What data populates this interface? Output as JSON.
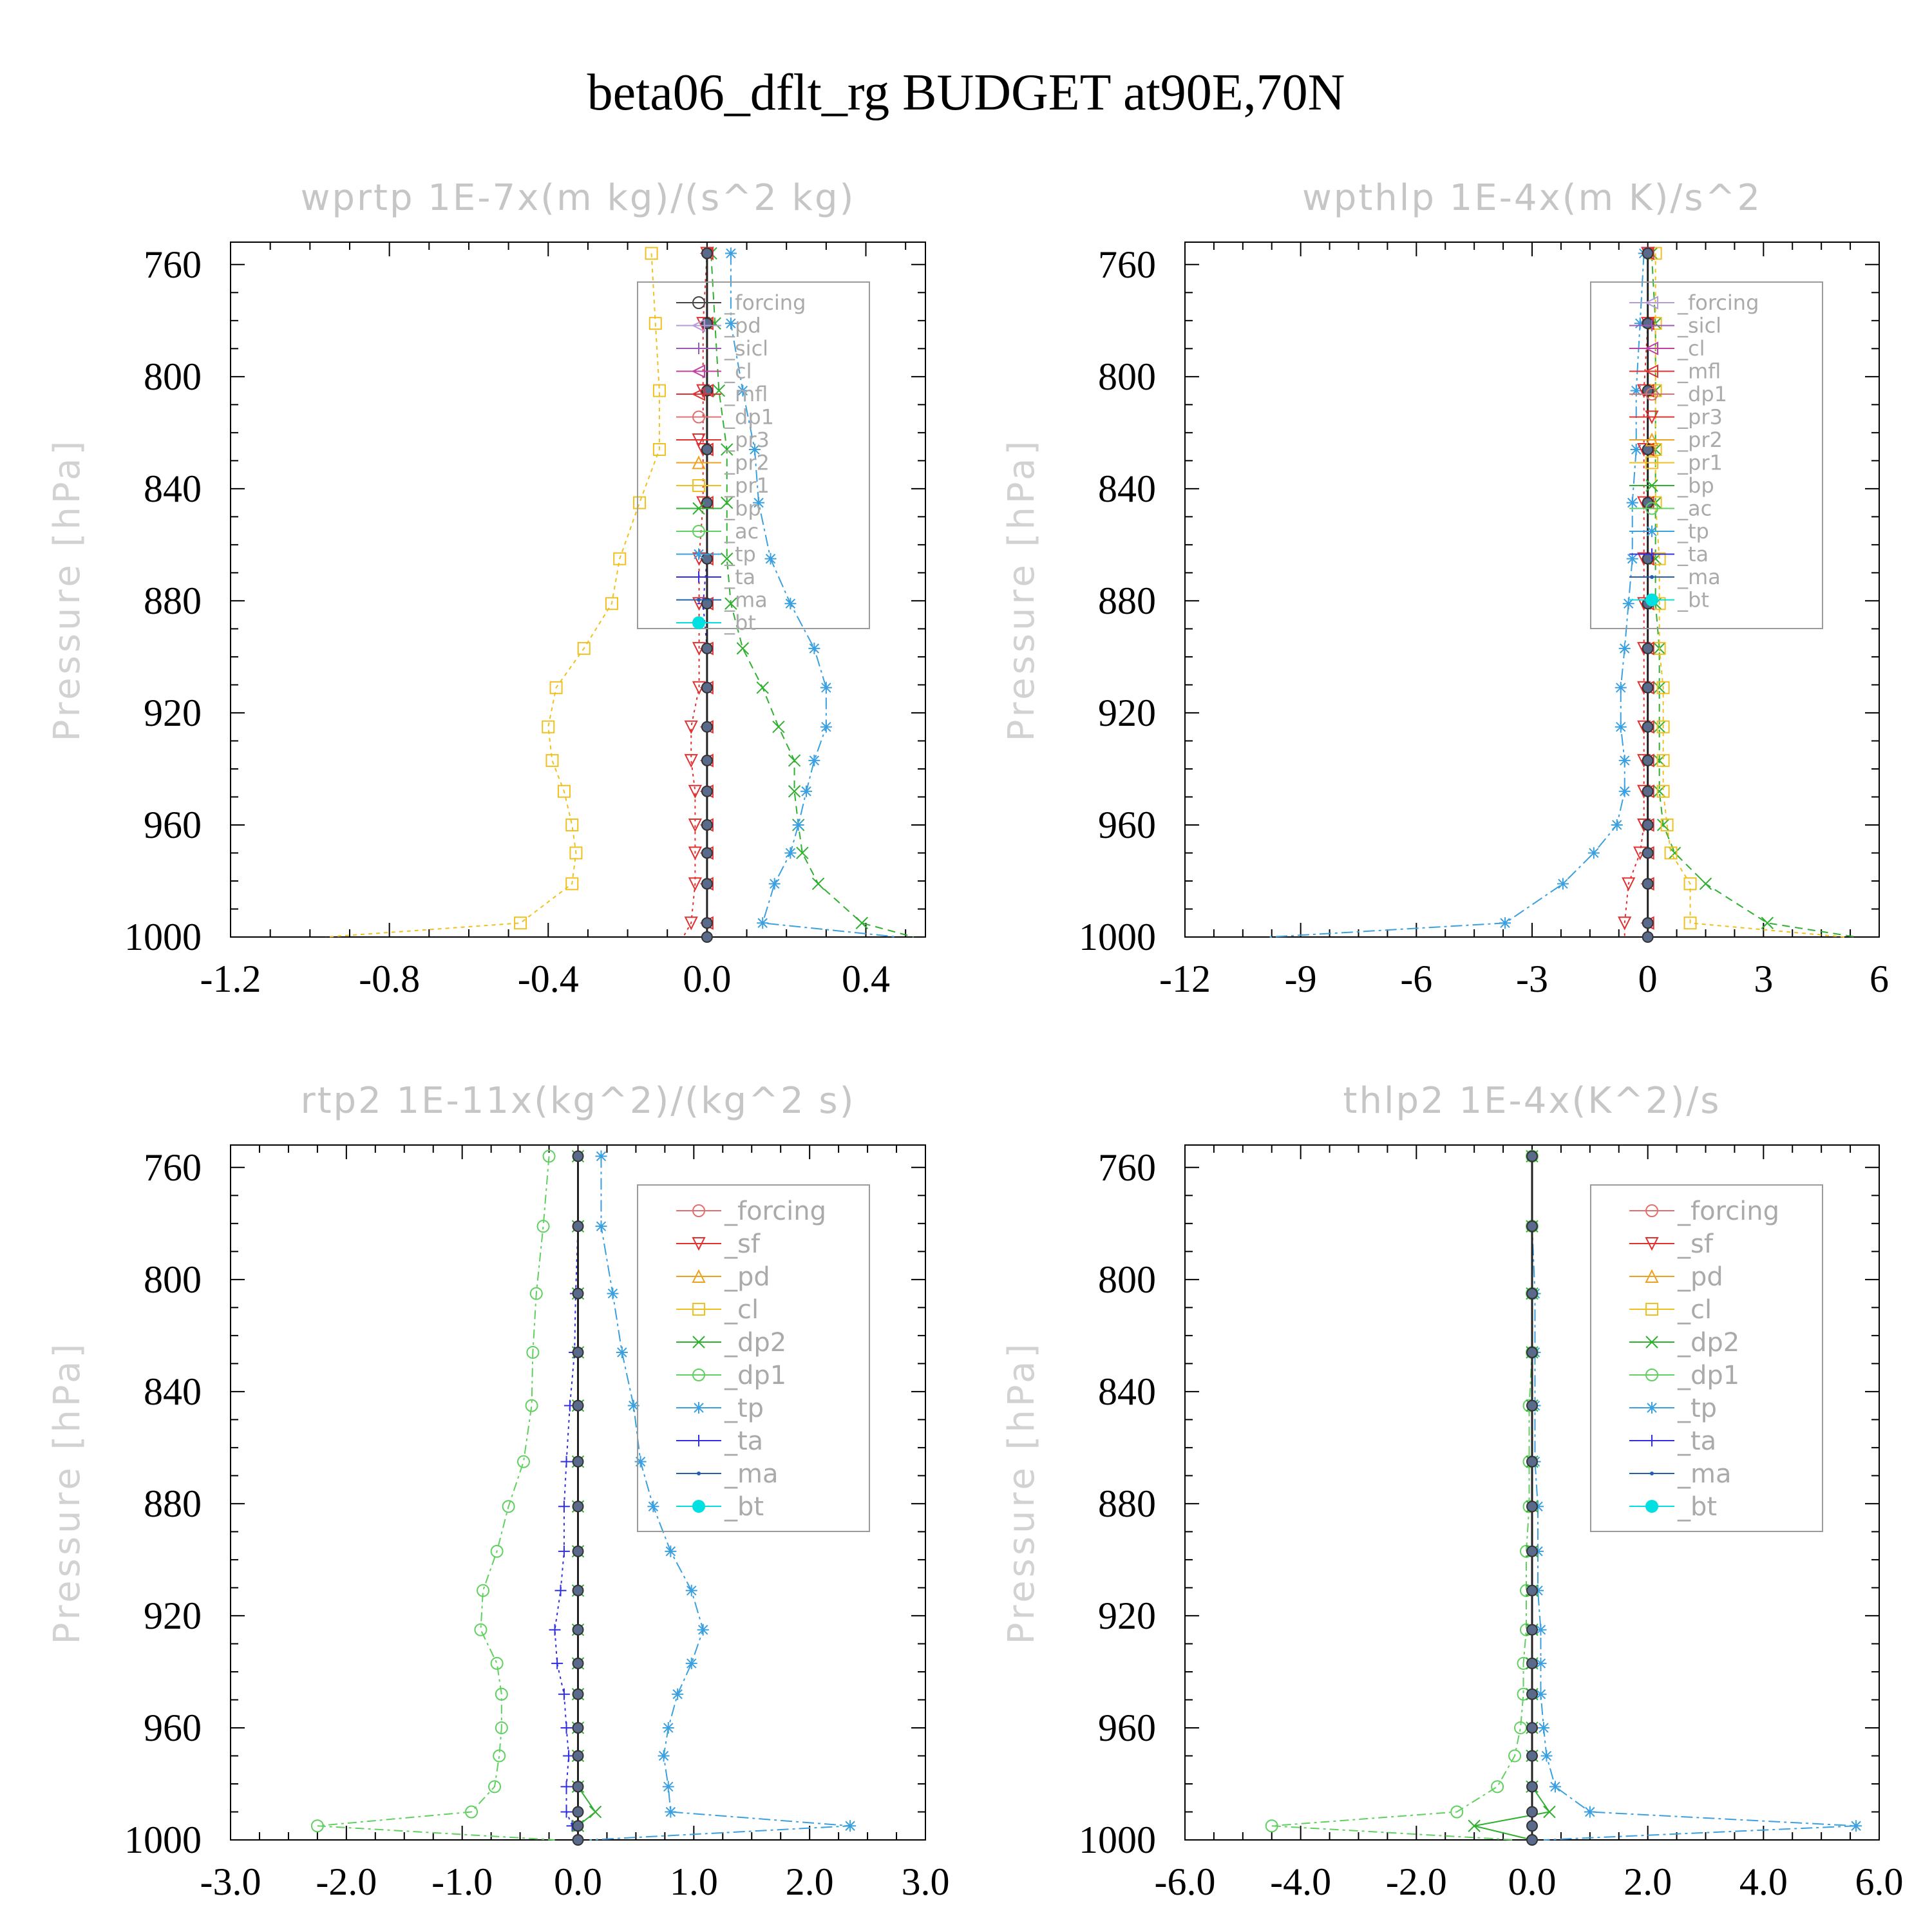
{
  "title": "beta06_dflt_rg  BUDGET at90E,70N",
  "ylabel": "Pressure [hPa]",
  "colors": {
    "forcing": "#444444",
    "pd": "#b59bd8",
    "sicl": "#9b59b6",
    "cl": "#c040a0",
    "mfl": "#e03030",
    "dp1": "#e07070",
    "pr3": "#e03030",
    "pr2": "#f0a020",
    "pr1": "#f0c020",
    "bp": "#30b030",
    "ac": "#60d060",
    "tp": "#3aa0e0",
    "ta": "#3030e0",
    "ma": "#2060b0",
    "bt": "#00e0e0"
  },
  "chart_data": [
    {
      "type": "line",
      "title": "wprtp  1E-7x(m kg)/(s^2 kg)",
      "xlim": [
        -1.2,
        0.55
      ],
      "xticks": [
        -1.2,
        -0.8,
        -0.4,
        0.0,
        0.4
      ],
      "xtick_labels": [
        "-1.2",
        "-0.8",
        "-0.4",
        "0.0",
        "0.4"
      ],
      "ylim": [
        1000,
        752
      ],
      "yticks": [
        760,
        800,
        840,
        880,
        920,
        960,
        1000
      ],
      "legend": [
        "_forcing",
        "_pd",
        "_sicl",
        "_cl",
        "_mfl",
        "_dp1",
        "_pr3",
        "_pr2",
        "_pr1",
        "_bp",
        "_ac",
        "_tp",
        "_ta",
        "_ma",
        "_bt"
      ],
      "legend_keys": [
        "forcing",
        "pd",
        "sicl",
        "cl",
        "mfl",
        "dp1",
        "pr3",
        "pr2",
        "pr1",
        "bp",
        "ac",
        "tp",
        "ta",
        "ma",
        "bt"
      ],
      "legend_big": false,
      "pressure": [
        756,
        781,
        805,
        826,
        845,
        865,
        881,
        897,
        911,
        925,
        937,
        948,
        960,
        970,
        981,
        995,
        1000
      ],
      "series": [
        {
          "name": "_pr1",
          "key": "pr1",
          "marker": "square",
          "dash": "6,6",
          "values": [
            -0.14,
            -0.13,
            -0.12,
            -0.12,
            -0.17,
            -0.22,
            -0.24,
            -0.31,
            -0.38,
            -0.4,
            -0.39,
            -0.36,
            -0.34,
            -0.33,
            -0.34,
            -0.47,
            -0.96
          ]
        },
        {
          "name": "_pr3",
          "key": "pr3",
          "marker": "tri-down",
          "dash": "4,6",
          "values": [
            0.0,
            -0.01,
            -0.01,
            -0.01,
            -0.01,
            -0.02,
            -0.02,
            -0.02,
            -0.02,
            -0.04,
            -0.04,
            -0.03,
            -0.03,
            -0.03,
            -0.03,
            -0.04,
            -0.06
          ]
        },
        {
          "name": "_bp",
          "key": "bp",
          "marker": "x",
          "dash": "12,8",
          "values": [
            0.01,
            0.02,
            0.03,
            0.05,
            0.05,
            0.05,
            0.06,
            0.09,
            0.14,
            0.18,
            0.22,
            0.22,
            0.23,
            0.24,
            0.28,
            0.39,
            0.52
          ]
        },
        {
          "name": "_tp",
          "key": "tp",
          "marker": "asterisk",
          "dash": "18,6,4,6",
          "values": [
            0.06,
            0.06,
            0.09,
            0.12,
            0.13,
            0.16,
            0.21,
            0.27,
            0.3,
            0.3,
            0.27,
            0.25,
            0.23,
            0.21,
            0.17,
            0.14,
            0.48
          ]
        },
        {
          "name": "_ta",
          "key": "ta",
          "marker": "plus",
          "dash": "4,6",
          "values": [
            0.0,
            0.0,
            0.0,
            0.0,
            0.0,
            0.0,
            -0.01,
            0.0,
            0.0,
            0.0,
            0.0,
            0.0,
            0.0,
            0.0,
            0.0,
            0.0,
            0.0
          ]
        },
        {
          "name": "_ma",
          "key": "ma",
          "marker": "dot",
          "dash": "14,6,4,6",
          "values": [
            0.0,
            0.0,
            0.0,
            0.0,
            0.0,
            0.0,
            0.0,
            0.0,
            0.0,
            0.0,
            0.0,
            0.0,
            0.0,
            0.0,
            0.0,
            0.0,
            0.0
          ]
        },
        {
          "name": "_mfl",
          "key": "mfl",
          "marker": "tri-left",
          "dash": "",
          "values": [
            0.0,
            0.0,
            0.0,
            0.0,
            0.0,
            0.0,
            0.0,
            0.0,
            0.0,
            0.0,
            0.0,
            0.0,
            0.0,
            0.0,
            0.0,
            0.0,
            0.0
          ]
        },
        {
          "name": "_forcing",
          "key": "forcing",
          "marker": "circle-bold",
          "dash": "",
          "values": [
            0.0,
            0.0,
            0.0,
            0.0,
            0.0,
            0.0,
            0.0,
            0.0,
            0.0,
            0.0,
            0.0,
            0.0,
            0.0,
            0.0,
            0.0,
            0.0,
            0.0
          ]
        }
      ]
    },
    {
      "type": "line",
      "title": "wpthlp  1E-4x(m K)/s^2",
      "xlim": [
        -12,
        6
      ],
      "xticks": [
        -12,
        -9,
        -6,
        -3,
        0,
        3,
        6
      ],
      "xtick_labels": [
        "-12",
        "-9",
        "-6",
        "-3",
        "0",
        "3",
        "6"
      ],
      "ylim": [
        1000,
        752
      ],
      "yticks": [
        760,
        800,
        840,
        880,
        920,
        960,
        1000
      ],
      "legend": [
        "_forcing",
        "_sicl",
        "_cl",
        "_mfl",
        "_dp1",
        "_pr3",
        "_pr2",
        "_pr1",
        "_bp",
        "_ac",
        "_tp",
        "_ta",
        "_ma",
        "_bt"
      ],
      "legend_keys": [
        "pd",
        "sicl",
        "cl",
        "mfl",
        "dp1",
        "pr3",
        "pr2",
        "pr1",
        "bp",
        "ac",
        "tp",
        "ta",
        "ma",
        "bt"
      ],
      "legend_big": false,
      "pressure": [
        756,
        781,
        805,
        826,
        845,
        865,
        881,
        897,
        911,
        925,
        937,
        948,
        960,
        970,
        981,
        995,
        1000
      ],
      "series": [
        {
          "name": "_tp",
          "key": "tp",
          "marker": "asterisk",
          "dash": "18,6,4,6",
          "values": [
            -0.1,
            -0.2,
            -0.3,
            -0.3,
            -0.4,
            -0.4,
            -0.5,
            -0.6,
            -0.7,
            -0.7,
            -0.6,
            -0.6,
            -0.8,
            -1.4,
            -2.2,
            -3.7,
            -9.8
          ]
        },
        {
          "name": "_bp",
          "key": "bp",
          "marker": "x",
          "dash": "12,8",
          "values": [
            0.1,
            0.2,
            0.2,
            0.2,
            0.2,
            0.2,
            0.2,
            0.3,
            0.3,
            0.3,
            0.3,
            0.3,
            0.4,
            0.7,
            1.5,
            3.1,
            5.4
          ]
        },
        {
          "name": "_pr1",
          "key": "pr1",
          "marker": "square",
          "dash": "6,6",
          "values": [
            0.2,
            0.2,
            0.2,
            0.2,
            0.2,
            0.3,
            0.3,
            0.3,
            0.4,
            0.4,
            0.4,
            0.4,
            0.5,
            0.6,
            1.1,
            1.1,
            5.1
          ]
        },
        {
          "name": "_pr3",
          "key": "pr3",
          "marker": "tri-down",
          "dash": "4,6",
          "values": [
            0.0,
            0.0,
            -0.1,
            -0.1,
            -0.1,
            -0.1,
            -0.1,
            -0.1,
            -0.1,
            -0.1,
            -0.1,
            -0.1,
            -0.1,
            -0.2,
            -0.5,
            -0.6,
            -0.6
          ]
        },
        {
          "name": "_ta",
          "key": "ta",
          "marker": "plus",
          "dash": "4,6",
          "values": [
            0.0,
            0.0,
            0.0,
            0.0,
            0.0,
            0.0,
            0.0,
            0.0,
            0.0,
            0.0,
            0.0,
            0.0,
            0.0,
            0.0,
            0.0,
            0.0,
            0.0
          ]
        },
        {
          "name": "_mfl",
          "key": "mfl",
          "marker": "tri-left",
          "dash": "",
          "values": [
            0.0,
            0.0,
            0.0,
            0.0,
            0.0,
            0.0,
            0.0,
            0.0,
            0.0,
            0.0,
            0.0,
            0.0,
            0.0,
            0.0,
            0.0,
            0.0,
            0.0
          ]
        },
        {
          "name": "_ma",
          "key": "ma",
          "marker": "circle-bold",
          "dash": "",
          "values": [
            0.0,
            0.0,
            0.0,
            0.0,
            0.0,
            0.0,
            0.0,
            0.0,
            0.0,
            0.0,
            0.0,
            0.0,
            0.0,
            0.0,
            0.0,
            0.0,
            0.0
          ]
        }
      ]
    },
    {
      "type": "line",
      "title": "rtp2  1E-11x(kg^2)/(kg^2 s)",
      "xlim": [
        -3.0,
        3.0
      ],
      "xticks": [
        -3.0,
        -2.0,
        -1.0,
        0.0,
        1.0,
        2.0,
        3.0
      ],
      "xtick_labels": [
        "-3.0",
        "-2.0",
        "-1.0",
        "0.0",
        "1.0",
        "2.0",
        "3.0"
      ],
      "ylim": [
        1000,
        752
      ],
      "yticks": [
        760,
        800,
        840,
        880,
        920,
        960,
        1000
      ],
      "legend": [
        "_forcing",
        "_sf",
        "_pd",
        "_cl",
        "_dp2",
        "_dp1",
        "_tp",
        "_ta",
        "_ma",
        "_bt"
      ],
      "legend_keys": [
        "dp1",
        "pr3",
        "pr2",
        "pr1",
        "bp",
        "ac",
        "tp",
        "ta",
        "ma",
        "bt"
      ],
      "legend_big": true,
      "pressure": [
        756,
        781,
        805,
        826,
        845,
        865,
        881,
        897,
        911,
        925,
        937,
        948,
        960,
        970,
        981,
        990,
        995,
        1000
      ],
      "series": [
        {
          "name": "_dp1",
          "key": "ac",
          "marker": "circle",
          "dash": "14,6,4,6",
          "values": [
            -0.25,
            -0.3,
            -0.36,
            -0.39,
            -0.4,
            -0.47,
            -0.6,
            -0.7,
            -0.82,
            -0.84,
            -0.7,
            -0.66,
            -0.66,
            -0.68,
            -0.72,
            -0.92,
            -2.25,
            -0.2
          ]
        },
        {
          "name": "_tp",
          "key": "tp",
          "marker": "asterisk",
          "dash": "18,6,4,6",
          "values": [
            0.2,
            0.2,
            0.3,
            0.38,
            0.48,
            0.54,
            0.65,
            0.8,
            0.98,
            1.08,
            0.98,
            0.86,
            0.78,
            0.74,
            0.78,
            0.8,
            2.35,
            0.1
          ]
        },
        {
          "name": "_ta",
          "key": "ta",
          "marker": "plus",
          "dash": "4,6",
          "values": [
            0.0,
            0.0,
            -0.02,
            -0.03,
            -0.07,
            -0.1,
            -0.12,
            -0.12,
            -0.15,
            -0.2,
            -0.18,
            -0.12,
            -0.1,
            -0.08,
            -0.1,
            -0.1,
            -0.05,
            0.0
          ]
        },
        {
          "name": "_dp2",
          "key": "bp",
          "marker": "x",
          "dash": "",
          "values": [
            0.0,
            0.0,
            0.0,
            0.0,
            0.0,
            0.0,
            0.0,
            0.0,
            0.0,
            0.0,
            0.0,
            0.0,
            0.0,
            0.0,
            0.0,
            0.15,
            0.0,
            0.0
          ]
        },
        {
          "name": "_forcing",
          "key": "dp1",
          "marker": "circle-bold",
          "dash": "",
          "values": [
            0.0,
            0.0,
            0.0,
            0.0,
            0.0,
            0.0,
            0.0,
            0.0,
            0.0,
            0.0,
            0.0,
            0.0,
            0.0,
            0.0,
            0.0,
            0.0,
            0.0,
            0.0
          ]
        }
      ]
    },
    {
      "type": "line",
      "title": "thlp2  1E-4x(K^2)/s",
      "xlim": [
        -6.0,
        6.0
      ],
      "xticks": [
        -6.0,
        -4.0,
        -2.0,
        0.0,
        2.0,
        4.0,
        6.0
      ],
      "xtick_labels": [
        "-6.0",
        "-4.0",
        "-2.0",
        "0.0",
        "2.0",
        "4.0",
        "6.0"
      ],
      "ylim": [
        1000,
        752
      ],
      "yticks": [
        760,
        800,
        840,
        880,
        920,
        960,
        1000
      ],
      "legend": [
        "_forcing",
        "_sf",
        "_pd",
        "_cl",
        "_dp2",
        "_dp1",
        "_tp",
        "_ta",
        "_ma",
        "_bt"
      ],
      "legend_keys": [
        "dp1",
        "pr3",
        "pr2",
        "pr1",
        "bp",
        "ac",
        "tp",
        "ta",
        "ma",
        "bt"
      ],
      "legend_big": true,
      "pressure": [
        756,
        781,
        805,
        826,
        845,
        865,
        881,
        897,
        911,
        925,
        937,
        948,
        960,
        970,
        981,
        990,
        995,
        1000
      ],
      "series": [
        {
          "name": "_dp1",
          "key": "ac",
          "marker": "circle",
          "dash": "14,6,4,6",
          "values": [
            0.0,
            0.0,
            0.0,
            0.0,
            -0.05,
            -0.05,
            -0.05,
            -0.1,
            -0.1,
            -0.1,
            -0.15,
            -0.15,
            -0.2,
            -0.3,
            -0.6,
            -1.3,
            -4.5,
            -0.3
          ]
        },
        {
          "name": "_tp",
          "key": "tp",
          "marker": "asterisk",
          "dash": "18,6,4,6",
          "values": [
            0.0,
            0.0,
            0.05,
            0.05,
            0.05,
            0.05,
            0.1,
            0.1,
            0.1,
            0.15,
            0.15,
            0.15,
            0.2,
            0.25,
            0.4,
            1.0,
            5.6,
            0.2
          ]
        },
        {
          "name": "_dp2",
          "key": "bp",
          "marker": "x",
          "dash": "",
          "values": [
            0.0,
            0.0,
            0.0,
            0.0,
            0.0,
            0.0,
            0.0,
            0.0,
            0.0,
            0.0,
            0.0,
            0.0,
            0.0,
            0.0,
            0.0,
            0.3,
            -1.0,
            0.0
          ]
        },
        {
          "name": "_forcing",
          "key": "dp1",
          "marker": "circle-bold",
          "dash": "",
          "values": [
            0.0,
            0.0,
            0.0,
            0.0,
            0.0,
            0.0,
            0.0,
            0.0,
            0.0,
            0.0,
            0.0,
            0.0,
            0.0,
            0.0,
            0.0,
            0.0,
            0.0,
            0.0
          ]
        }
      ]
    }
  ]
}
